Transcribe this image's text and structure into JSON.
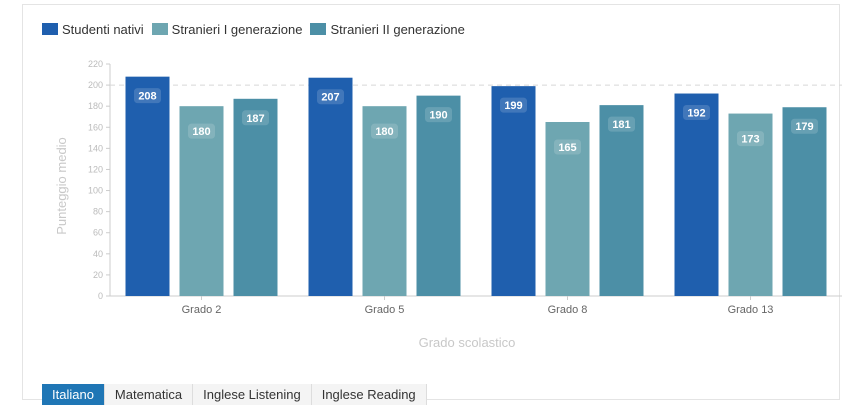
{
  "chart_data": {
    "type": "bar",
    "categories": [
      "Grado 2",
      "Grado 5",
      "Grado 8",
      "Grado 13"
    ],
    "series": [
      {
        "name": "Studenti nativi",
        "color": "#1f5fae",
        "values": [
          208,
          207,
          199,
          192
        ]
      },
      {
        "name": "Stranieri I generazione",
        "color": "#6ea6b1",
        "values": [
          180,
          180,
          165,
          173
        ]
      },
      {
        "name": "Stranieri II generazione",
        "color": "#4c8fa6",
        "values": [
          187,
          190,
          181,
          179
        ]
      }
    ],
    "xlabel": "Grado scolastico",
    "ylabel": "Punteggio medio",
    "ylim": [
      0,
      220
    ],
    "yticks": [
      0,
      20,
      40,
      60,
      80,
      100,
      120,
      140,
      160,
      180,
      200,
      220
    ],
    "reference_line": 200,
    "grid": false,
    "legend_position": "top-left"
  },
  "tabs": [
    {
      "label": "Italiano",
      "active": true
    },
    {
      "label": "Matematica",
      "active": false
    },
    {
      "label": "Inglese Listening",
      "active": false
    },
    {
      "label": "Inglese Reading",
      "active": false
    }
  ],
  "colors": {
    "axis": "#cccccc",
    "tick_text": "#bbbbbb",
    "title_text": "#c8c8c8",
    "reference_line": "#d8d8d8"
  }
}
